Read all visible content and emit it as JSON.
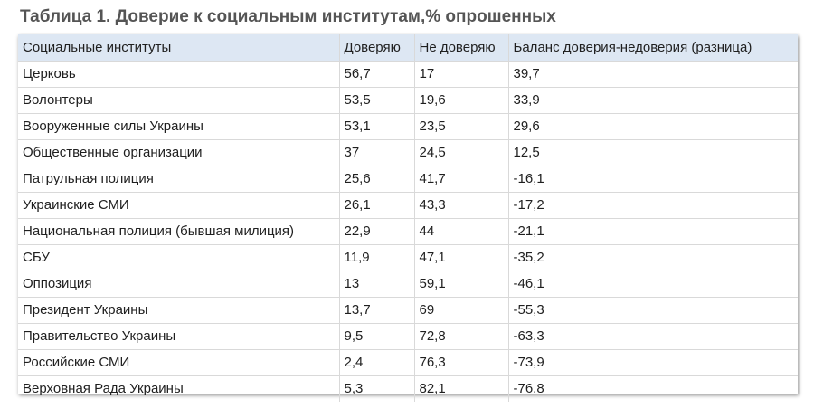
{
  "title": "Таблица 1. Доверие к социальным институтам,% опрошенных",
  "table": {
    "headers": [
      "Социальные институты",
      "Доверяю",
      "Не доверяю",
      "Баланс доверия-недоверия (разница)"
    ],
    "rows": [
      [
        "Церковь",
        "56,7",
        "17",
        "39,7"
      ],
      [
        "Волонтеры",
        "53,5",
        "19,6",
        "33,9"
      ],
      [
        "Вооруженные силы Украины",
        "53,1",
        "23,5",
        "29,6"
      ],
      [
        "Общественные организации",
        "37",
        "24,5",
        "12,5"
      ],
      [
        "Патрульная полиция",
        "25,6",
        "41,7",
        "-16,1"
      ],
      [
        "Украинские СМИ",
        "26,1",
        "43,3",
        "-17,2"
      ],
      [
        "Национальная полиция (бывшая милиция)",
        "22,9",
        "44",
        "-21,1"
      ],
      [
        "СБУ",
        "11,9",
        "47,1",
        "-35,2"
      ],
      [
        "Оппозиция",
        "13",
        "59,1",
        "-46,1"
      ],
      [
        "Президент Украины",
        "13,7",
        "69",
        "-55,3"
      ],
      [
        "Правительство Украины",
        "9,5",
        "72,8",
        "-63,3"
      ],
      [
        "Российские СМИ",
        "2,4",
        "76,3",
        "-73,9"
      ],
      [
        "Верховная Рада Украины",
        "5,3",
        "82,1",
        "-76,8"
      ]
    ]
  },
  "colors": {
    "header_background": "#dde7f3",
    "title_text": "#555555",
    "grid_line": "#d9d9d9"
  }
}
